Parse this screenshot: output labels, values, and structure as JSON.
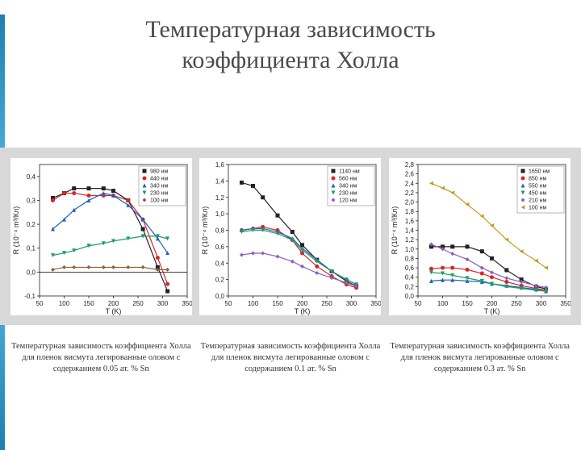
{
  "title_line1": "Температурная зависимость",
  "title_line2": "коэффициента Холла",
  "band_bg": "#d8d8d8",
  "accent_colors": [
    "#1f7fb5",
    "#5fc3e8"
  ],
  "charts": [
    {
      "type": "line-scatter",
      "xlabel": "T (K)",
      "ylabel": "R (10⁻⁴ m³/Кл)",
      "xlim": [
        50,
        350
      ],
      "xtick_step": 50,
      "ylim": [
        -0.1,
        0.45
      ],
      "ytick_step": 0.1,
      "yzero": true,
      "background_color": "#ffffff",
      "grid_color": "#d0d0d0",
      "axis_color": "#222222",
      "series": [
        {
          "label": "980 нм",
          "color": "#222222",
          "marker": "square",
          "data": [
            [
              77,
              0.31
            ],
            [
              100,
              0.33
            ],
            [
              120,
              0.35
            ],
            [
              150,
              0.35
            ],
            [
              180,
              0.35
            ],
            [
              200,
              0.34
            ],
            [
              230,
              0.3
            ],
            [
              260,
              0.18
            ],
            [
              290,
              0.02
            ],
            [
              310,
              -0.08
            ]
          ]
        },
        {
          "label": "440 нм",
          "color": "#d62728",
          "marker": "circle",
          "data": [
            [
              77,
              0.3
            ],
            [
              100,
              0.33
            ],
            [
              120,
              0.33
            ],
            [
              150,
              0.32
            ],
            [
              180,
              0.32
            ],
            [
              200,
              0.32
            ],
            [
              230,
              0.3
            ],
            [
              260,
              0.22
            ],
            [
              290,
              0.06
            ],
            [
              310,
              -0.05
            ]
          ]
        },
        {
          "label": "340 нм",
          "color": "#1f5fc4",
          "marker": "triangle",
          "data": [
            [
              77,
              0.18
            ],
            [
              100,
              0.22
            ],
            [
              120,
              0.26
            ],
            [
              150,
              0.3
            ],
            [
              180,
              0.33
            ],
            [
              200,
              0.32
            ],
            [
              230,
              0.28
            ],
            [
              260,
              0.22
            ],
            [
              290,
              0.14
            ],
            [
              310,
              0.08
            ]
          ]
        },
        {
          "label": "230 нм",
          "color": "#1aa05e",
          "marker": "invtriangle",
          "data": [
            [
              77,
              0.07
            ],
            [
              100,
              0.08
            ],
            [
              120,
              0.09
            ],
            [
              150,
              0.11
            ],
            [
              180,
              0.12
            ],
            [
              200,
              0.13
            ],
            [
              230,
              0.14
            ],
            [
              260,
              0.15
            ],
            [
              290,
              0.15
            ],
            [
              310,
              0.14
            ]
          ]
        },
        {
          "label": "100 нм",
          "color": "#8c6239",
          "marker": "diamond",
          "data": [
            [
              77,
              0.01
            ],
            [
              100,
              0.02
            ],
            [
              120,
              0.02
            ],
            [
              150,
              0.02
            ],
            [
              180,
              0.02
            ],
            [
              200,
              0.02
            ],
            [
              230,
              0.02
            ],
            [
              260,
              0.02
            ],
            [
              290,
              0.01
            ],
            [
              310,
              0.01
            ]
          ]
        }
      ],
      "caption": "Температурная зависимость коэффициента Холла для пленок висмута легированные оловом с содержанием 0.05 ат. % Sn"
    },
    {
      "type": "line-scatter",
      "xlabel": "T (K)",
      "ylabel": "R (10⁻⁴ m³/Кл)",
      "xlim": [
        50,
        350
      ],
      "xtick_step": 50,
      "ylim": [
        0.0,
        1.6
      ],
      "ytick_step": 0.2,
      "yzero": true,
      "background_color": "#ffffff",
      "grid_color": "#d0d0d0",
      "axis_color": "#222222",
      "series": [
        {
          "label": "1140 нм",
          "color": "#222222",
          "marker": "square",
          "data": [
            [
              77,
              1.38
            ],
            [
              100,
              1.34
            ],
            [
              120,
              1.2
            ],
            [
              150,
              0.98
            ],
            [
              180,
              0.78
            ],
            [
              200,
              0.62
            ],
            [
              230,
              0.44
            ],
            [
              260,
              0.3
            ],
            [
              290,
              0.18
            ],
            [
              310,
              0.12
            ]
          ]
        },
        {
          "label": "560 нм",
          "color": "#d62728",
          "marker": "circle",
          "data": [
            [
              77,
              0.8
            ],
            [
              100,
              0.82
            ],
            [
              120,
              0.84
            ],
            [
              150,
              0.8
            ],
            [
              180,
              0.68
            ],
            [
              200,
              0.52
            ],
            [
              230,
              0.36
            ],
            [
              260,
              0.24
            ],
            [
              290,
              0.14
            ],
            [
              310,
              0.1
            ]
          ]
        },
        {
          "label": "340 нм",
          "color": "#1f5fc4",
          "marker": "triangle",
          "data": [
            [
              77,
              0.8
            ],
            [
              100,
              0.82
            ],
            [
              120,
              0.82
            ],
            [
              150,
              0.78
            ],
            [
              180,
              0.7
            ],
            [
              200,
              0.58
            ],
            [
              230,
              0.44
            ],
            [
              260,
              0.3
            ],
            [
              290,
              0.2
            ],
            [
              310,
              0.14
            ]
          ]
        },
        {
          "label": "230 нм",
          "color": "#1aa05e",
          "marker": "invtriangle",
          "data": [
            [
              77,
              0.78
            ],
            [
              100,
              0.8
            ],
            [
              120,
              0.8
            ],
            [
              150,
              0.76
            ],
            [
              180,
              0.68
            ],
            [
              200,
              0.56
            ],
            [
              230,
              0.42
            ],
            [
              260,
              0.3
            ],
            [
              290,
              0.2
            ],
            [
              310,
              0.14
            ]
          ]
        },
        {
          "label": "120 нм",
          "color": "#8a5ec2",
          "marker": "diamond",
          "data": [
            [
              77,
              0.5
            ],
            [
              100,
              0.52
            ],
            [
              120,
              0.52
            ],
            [
              150,
              0.48
            ],
            [
              180,
              0.42
            ],
            [
              200,
              0.36
            ],
            [
              230,
              0.28
            ],
            [
              260,
              0.22
            ],
            [
              290,
              0.16
            ],
            [
              310,
              0.12
            ]
          ]
        }
      ],
      "caption": "Температурная зависимость коэффициента Холла для пленок висмута легированные оловом с содержанием 0.1 ат. % Sn"
    },
    {
      "type": "line-scatter",
      "xlabel": "T (K)",
      "ylabel": "R (10⁻⁴ m³/Кл)",
      "xlim": [
        50,
        350
      ],
      "xtick_step": 50,
      "ylim": [
        0.0,
        2.8
      ],
      "ytick_step": 0.2,
      "yzero": true,
      "background_color": "#ffffff",
      "grid_color": "#d0d0d0",
      "axis_color": "#222222",
      "series": [
        {
          "label": "1650 нм",
          "color": "#222222",
          "marker": "square",
          "data": [
            [
              77,
              1.05
            ],
            [
              100,
              1.05
            ],
            [
              120,
              1.05
            ],
            [
              150,
              1.05
            ],
            [
              180,
              0.95
            ],
            [
              200,
              0.8
            ],
            [
              230,
              0.55
            ],
            [
              260,
              0.35
            ],
            [
              290,
              0.2
            ],
            [
              310,
              0.15
            ]
          ]
        },
        {
          "label": "850 нм",
          "color": "#d62728",
          "marker": "circle",
          "data": [
            [
              77,
              0.58
            ],
            [
              100,
              0.6
            ],
            [
              120,
              0.6
            ],
            [
              150,
              0.56
            ],
            [
              180,
              0.48
            ],
            [
              200,
              0.4
            ],
            [
              230,
              0.3
            ],
            [
              260,
              0.22
            ],
            [
              290,
              0.16
            ],
            [
              310,
              0.12
            ]
          ]
        },
        {
          "label": "550 нм",
          "color": "#1f5fc4",
          "marker": "triangle",
          "data": [
            [
              77,
              0.32
            ],
            [
              100,
              0.34
            ],
            [
              120,
              0.34
            ],
            [
              150,
              0.32
            ],
            [
              180,
              0.3
            ],
            [
              200,
              0.26
            ],
            [
              230,
              0.22
            ],
            [
              260,
              0.18
            ],
            [
              290,
              0.14
            ],
            [
              310,
              0.1
            ]
          ]
        },
        {
          "label": "450 нм",
          "color": "#1aa05e",
          "marker": "invtriangle",
          "data": [
            [
              77,
              0.5
            ],
            [
              100,
              0.48
            ],
            [
              120,
              0.44
            ],
            [
              150,
              0.38
            ],
            [
              180,
              0.32
            ],
            [
              200,
              0.26
            ],
            [
              230,
              0.2
            ],
            [
              260,
              0.16
            ],
            [
              290,
              0.12
            ],
            [
              310,
              0.1
            ]
          ]
        },
        {
          "label": "210 нм",
          "color": "#8a5ec2",
          "marker": "diamond",
          "data": [
            [
              77,
              1.1
            ],
            [
              100,
              1.0
            ],
            [
              120,
              0.9
            ],
            [
              150,
              0.78
            ],
            [
              180,
              0.6
            ],
            [
              200,
              0.5
            ],
            [
              230,
              0.38
            ],
            [
              260,
              0.3
            ],
            [
              290,
              0.22
            ],
            [
              310,
              0.18
            ]
          ]
        },
        {
          "label": "100 нм",
          "color": "#c29b1f",
          "marker": "lefttri",
          "data": [
            [
              77,
              2.4
            ],
            [
              100,
              2.3
            ],
            [
              120,
              2.2
            ],
            [
              150,
              1.95
            ],
            [
              180,
              1.7
            ],
            [
              200,
              1.5
            ],
            [
              230,
              1.2
            ],
            [
              260,
              0.95
            ],
            [
              290,
              0.75
            ],
            [
              310,
              0.6
            ]
          ]
        }
      ],
      "caption": "Температурная зависимость коэффициента Холла для пленок висмута легированные оловом с содержанием 0.3 ат. % Sn"
    }
  ]
}
